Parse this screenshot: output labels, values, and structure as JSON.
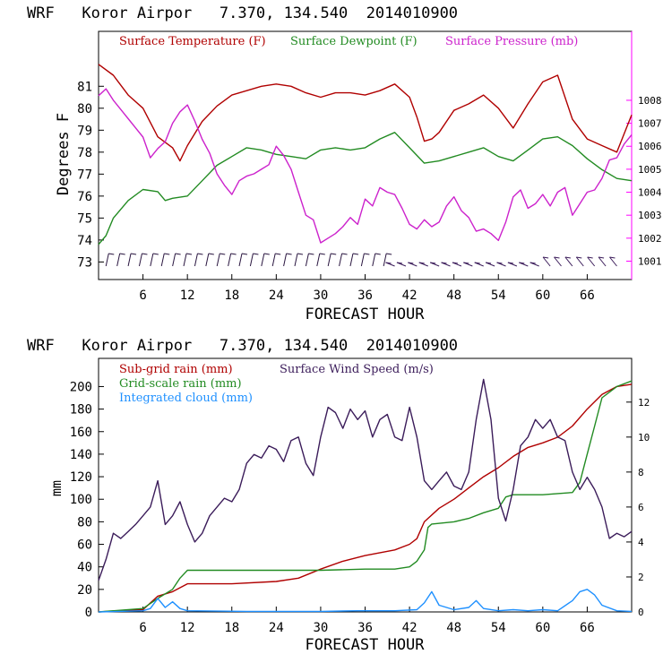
{
  "chart_data": [
    {
      "type": "line",
      "title": "WRF   Koror Airpor   7.370, 134.540  2014010900",
      "xlabel": "FORECAST HOUR",
      "ylabel": "Degrees F",
      "xlim": [
        0,
        72
      ],
      "ylim": [
        72.2,
        83.5
      ],
      "y2lim": [
        1000.2,
        1011
      ],
      "xticks": [
        6,
        12,
        18,
        24,
        30,
        36,
        42,
        48,
        54,
        60,
        66
      ],
      "xtick_labels": [
        "6",
        "12",
        "18",
        "24",
        "30",
        "36",
        "42",
        "48",
        "54",
        "60",
        "66"
      ],
      "yticks": [
        73,
        74,
        75,
        76,
        77,
        78,
        79,
        80,
        81
      ],
      "ytick_labels": [
        "73",
        "74",
        "75",
        "76",
        "77",
        "78",
        "79",
        "80",
        "81"
      ],
      "y2ticks": [
        1001,
        1002,
        1003,
        1004,
        1005,
        1006,
        1007,
        1008
      ],
      "y2tick_labels": [
        "1001",
        "1002",
        "1003",
        "1004",
        "1005",
        "1006",
        "1007",
        "1008"
      ],
      "legend_placement": "top",
      "series": [
        {
          "name": "Surface Temperature (F)",
          "axis": "left",
          "color": "#b00000",
          "x": [
            0,
            2,
            4,
            6,
            8,
            10,
            11,
            12,
            14,
            16,
            18,
            20,
            22,
            24,
            26,
            28,
            30,
            32,
            34,
            36,
            38,
            40,
            42,
            43,
            44,
            45,
            46,
            48,
            50,
            52,
            54,
            56,
            58,
            60,
            62,
            64,
            66,
            68,
            70,
            72
          ],
          "y": [
            82.0,
            81.5,
            80.6,
            80.0,
            78.7,
            78.2,
            77.6,
            78.3,
            79.4,
            80.1,
            80.6,
            80.8,
            81.0,
            81.1,
            81.0,
            80.7,
            80.5,
            80.7,
            80.7,
            80.6,
            80.8,
            81.1,
            80.5,
            79.6,
            78.5,
            78.6,
            78.9,
            79.9,
            80.2,
            80.6,
            80.0,
            79.1,
            80.2,
            81.2,
            81.5,
            79.5,
            78.6,
            78.3,
            78.0,
            79.7
          ]
        },
        {
          "name": "Surface Dewpoint (F)",
          "axis": "left",
          "color": "#228b22",
          "x": [
            0,
            1,
            2,
            4,
            6,
            8,
            9,
            10,
            12,
            14,
            16,
            18,
            20,
            22,
            24,
            26,
            28,
            30,
            32,
            34,
            36,
            38,
            40,
            42,
            44,
            46,
            48,
            50,
            52,
            54,
            56,
            58,
            60,
            62,
            64,
            66,
            68,
            70,
            72
          ],
          "y": [
            73.8,
            74.2,
            75.0,
            75.8,
            76.3,
            76.2,
            75.8,
            75.9,
            76.0,
            76.7,
            77.4,
            77.8,
            78.2,
            78.1,
            77.9,
            77.8,
            77.7,
            78.1,
            78.2,
            78.1,
            78.2,
            78.6,
            78.9,
            78.2,
            77.5,
            77.6,
            77.8,
            78.0,
            78.2,
            77.8,
            77.6,
            78.1,
            78.6,
            78.7,
            78.3,
            77.7,
            77.2,
            76.8,
            76.7
          ]
        },
        {
          "name": "Surface Pressure (mb)",
          "axis": "right",
          "color": "#cc22cc",
          "x": [
            0,
            1,
            2,
            3,
            4,
            5,
            6,
            7,
            8,
            9,
            10,
            11,
            12,
            13,
            14,
            15,
            16,
            17,
            18,
            19,
            20,
            21,
            22,
            23,
            24,
            25,
            26,
            27,
            28,
            29,
            30,
            31,
            32,
            33,
            34,
            35,
            36,
            37,
            38,
            39,
            40,
            41,
            42,
            43,
            44,
            45,
            46,
            47,
            48,
            49,
            50,
            51,
            52,
            53,
            54,
            55,
            56,
            57,
            58,
            59,
            60,
            61,
            62,
            63,
            64,
            65,
            66,
            67,
            68,
            69,
            70,
            71,
            72
          ],
          "y": [
            1008.2,
            1008.5,
            1008.0,
            1007.6,
            1007.2,
            1006.8,
            1006.4,
            1005.5,
            1005.9,
            1006.2,
            1007.0,
            1007.5,
            1007.8,
            1007.1,
            1006.3,
            1005.7,
            1004.8,
            1004.3,
            1003.9,
            1004.5,
            1004.7,
            1004.8,
            1005.0,
            1005.2,
            1006.0,
            1005.6,
            1005.0,
            1004.0,
            1003.0,
            1002.8,
            1001.8,
            1002.0,
            1002.2,
            1002.5,
            1002.9,
            1002.6,
            1003.7,
            1003.4,
            1004.2,
            1004.0,
            1003.9,
            1003.3,
            1002.6,
            1002.4,
            1002.8,
            1002.5,
            1002.7,
            1003.4,
            1003.8,
            1003.2,
            1002.9,
            1002.3,
            1002.4,
            1002.2,
            1001.9,
            1002.7,
            1003.8,
            1004.1,
            1003.3,
            1003.5,
            1003.9,
            1003.4,
            1004.0,
            1004.2,
            1003.0,
            1003.5,
            1004.0,
            1004.1,
            1004.6,
            1005.4,
            1005.5,
            1006.1,
            1006.5
          ]
        }
      ],
      "wind_barbs": "row of wind barbs along the bottom of the plot"
    },
    {
      "type": "line",
      "title": "WRF   Koror Airpor   7.370, 134.540  2014010900",
      "xlabel": "FORECAST HOUR",
      "ylabel": "mm",
      "xlim": [
        0,
        72
      ],
      "ylim": [
        0,
        225
      ],
      "y2lim": [
        0,
        14.5
      ],
      "xticks": [
        6,
        12,
        18,
        24,
        30,
        36,
        42,
        48,
        54,
        60,
        66
      ],
      "xtick_labels": [
        "6",
        "12",
        "18",
        "24",
        "30",
        "36",
        "42",
        "48",
        "54",
        "60",
        "66"
      ],
      "yticks": [
        0,
        20,
        40,
        60,
        80,
        100,
        120,
        140,
        160,
        180,
        200
      ],
      "ytick_labels": [
        "0",
        "20",
        "40",
        "60",
        "80",
        "100",
        "120",
        "140",
        "160",
        "180",
        "200"
      ],
      "y2ticks": [
        0,
        2,
        4,
        6,
        8,
        10,
        12
      ],
      "y2tick_labels": [
        "0",
        "2",
        "4",
        "6",
        "8",
        "10",
        "12"
      ],
      "legend_placement": "top-left",
      "series": [
        {
          "name": "Sub-grid rain (mm)",
          "axis": "left",
          "color": "#b00000",
          "x": [
            0,
            6,
            8,
            10,
            12,
            18,
            24,
            27,
            30,
            33,
            36,
            40,
            42,
            43,
            44,
            46,
            48,
            50,
            52,
            54,
            56,
            58,
            60,
            62,
            64,
            66,
            68,
            70,
            72
          ],
          "y": [
            0,
            2,
            14,
            18,
            25,
            25,
            27,
            30,
            38,
            45,
            50,
            55,
            60,
            65,
            80,
            92,
            100,
            110,
            120,
            128,
            138,
            146,
            150,
            155,
            165,
            180,
            193,
            200,
            202
          ]
        },
        {
          "name": "Grid-scale rain (mm)",
          "axis": "left",
          "color": "#228b22",
          "x": [
            0,
            6,
            8,
            10,
            11,
            12,
            18,
            24,
            30,
            36,
            40,
            42,
            43,
            44,
            44.5,
            45,
            48,
            50,
            52,
            54,
            55,
            56,
            60,
            62,
            64,
            65,
            66,
            67,
            68,
            70,
            72
          ],
          "y": [
            0,
            3,
            12,
            20,
            30,
            37,
            37,
            37,
            37,
            38,
            38,
            40,
            45,
            55,
            75,
            78,
            80,
            83,
            88,
            92,
            102,
            104,
            104,
            105,
            106,
            115,
            140,
            165,
            190,
            200,
            205
          ]
        },
        {
          "name": "Integrated cloud (mm)",
          "axis": "left",
          "color": "#1e90ff",
          "x": [
            0,
            6,
            7,
            8,
            9,
            10,
            11,
            12,
            20,
            30,
            35,
            40,
            43,
            44,
            45,
            46,
            48,
            50,
            51,
            52,
            54,
            56,
            58,
            60,
            62,
            64,
            65,
            66,
            67,
            68,
            70,
            72
          ],
          "y": [
            0,
            1,
            3,
            12,
            4,
            9,
            3,
            1,
            0.5,
            0.5,
            1,
            1,
            2,
            8,
            18,
            6,
            2,
            4,
            10,
            3,
            1,
            2,
            1,
            2,
            1,
            10,
            18,
            20,
            15,
            6,
            1,
            0.5
          ]
        },
        {
          "name": "Surface Wind Speed (m/s)",
          "axis": "right",
          "color": "#3b1c5a",
          "x": [
            0,
            1,
            2,
            3,
            4,
            5,
            6,
            7,
            8,
            9,
            10,
            11,
            12,
            13,
            14,
            15,
            16,
            17,
            18,
            19,
            20,
            21,
            22,
            23,
            24,
            25,
            26,
            27,
            28,
            29,
            30,
            31,
            32,
            33,
            34,
            35,
            36,
            37,
            38,
            39,
            40,
            41,
            42,
            43,
            44,
            45,
            46,
            47,
            48,
            49,
            50,
            51,
            52,
            53,
            54,
            55,
            56,
            57,
            58,
            59,
            60,
            61,
            62,
            63,
            64,
            65,
            66,
            67,
            68,
            69,
            70,
            71,
            72
          ],
          "y": [
            1.8,
            3.0,
            4.5,
            4.2,
            4.6,
            5.0,
            5.5,
            6.0,
            7.5,
            5.0,
            5.5,
            6.3,
            5.0,
            4.0,
            4.5,
            5.5,
            6.0,
            6.5,
            6.3,
            7.0,
            8.5,
            9.0,
            8.8,
            9.5,
            9.3,
            8.6,
            9.8,
            10.0,
            8.5,
            7.8,
            10.0,
            11.7,
            11.4,
            10.5,
            11.6,
            11.0,
            11.5,
            10.0,
            11.0,
            11.3,
            10.0,
            9.8,
            11.7,
            10.0,
            7.5,
            7.0,
            7.5,
            8.0,
            7.2,
            7.0,
            8.0,
            11.0,
            13.3,
            11.0,
            6.5,
            5.2,
            7.0,
            9.5,
            10.0,
            11.0,
            10.5,
            11.0,
            10.0,
            9.8,
            8.0,
            7.0,
            7.7,
            7.0,
            6.0,
            4.2,
            4.5,
            4.3,
            4.6
          ]
        }
      ]
    }
  ]
}
